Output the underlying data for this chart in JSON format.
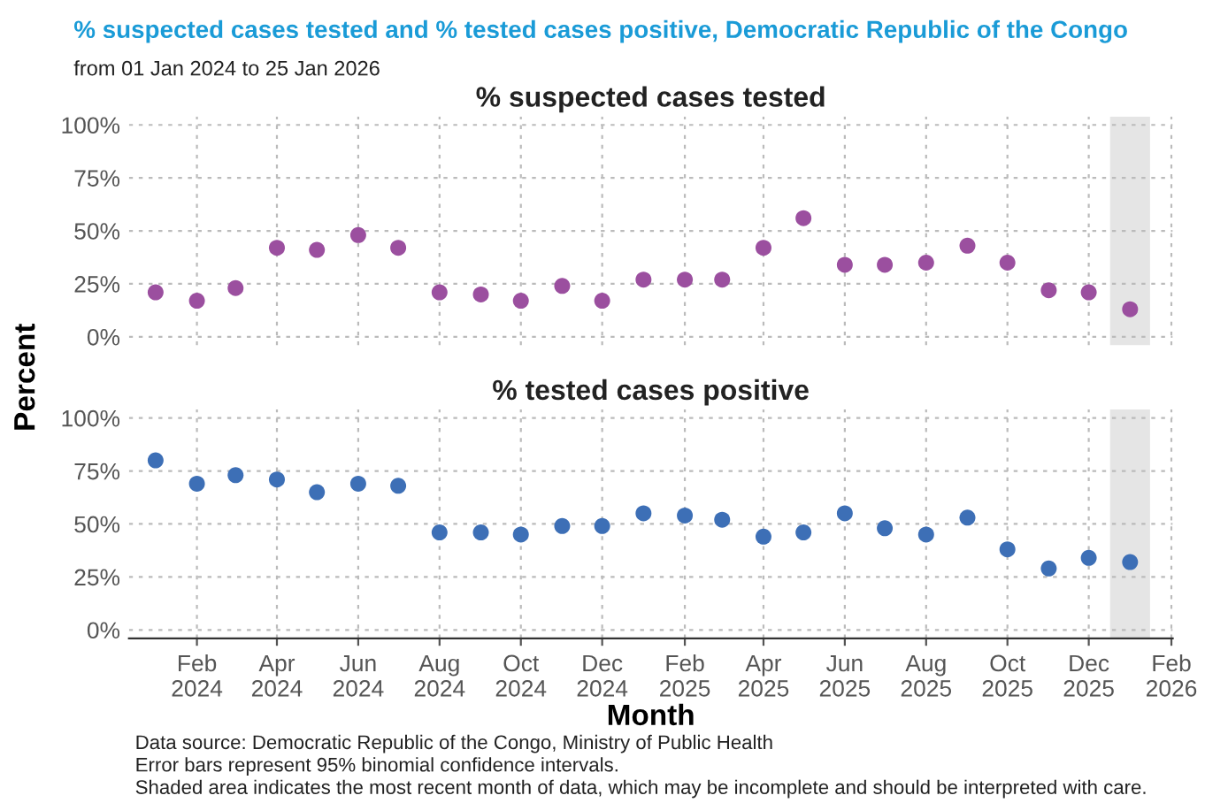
{
  "chart_data": [
    {
      "type": "scatter",
      "title": "% suspected cases tested and % tested cases positive, Democratic Republic of the Congo",
      "subtitle": "from 01 Jan 2024 to 25 Jan 2026",
      "ylabel": "Percent",
      "x": [
        "2024-01",
        "2024-02",
        "2024-03",
        "2024-04",
        "2024-05",
        "2024-06",
        "2024-07",
        "2024-08",
        "2024-09",
        "2024-10",
        "2024-11",
        "2024-12",
        "2025-01",
        "2025-02",
        "2025-03",
        "2025-04",
        "2025-05",
        "2025-06",
        "2025-07",
        "2025-08",
        "2025-09",
        "2025-10",
        "2025-11",
        "2025-12",
        "2026-01"
      ],
      "series": [
        {
          "name": "% suspected cases tested",
          "color": "#9b4f9f",
          "values": [
            21,
            17,
            23,
            42,
            41,
            48,
            42,
            21,
            20,
            17,
            24,
            17,
            27,
            27,
            27,
            42,
            56,
            34,
            34,
            35,
            43,
            35,
            22,
            21,
            13
          ]
        }
      ],
      "xlim": [
        "2023-12-12",
        "2026-02-02"
      ],
      "ylim": [
        -4,
        104
      ],
      "yticks": [
        {
          "value": 0,
          "label": "0%"
        },
        {
          "value": 25,
          "label": "25%"
        },
        {
          "value": 50,
          "label": "50%"
        },
        {
          "value": 75,
          "label": "75%"
        },
        {
          "value": 100,
          "label": "100%"
        }
      ],
      "xticks": [
        {
          "value": "2024-02-01",
          "label": null
        },
        {
          "value": "2024-04-01",
          "label": null
        },
        {
          "value": "2024-06-01",
          "label": null
        },
        {
          "value": "2024-08-01",
          "label": null
        },
        {
          "value": "2024-10-01",
          "label": null
        },
        {
          "value": "2024-12-01",
          "label": null
        },
        {
          "value": "2025-02-01",
          "label": null
        },
        {
          "value": "2025-04-01",
          "label": null
        },
        {
          "value": "2025-06-01",
          "label": null
        },
        {
          "value": "2025-08-01",
          "label": null
        },
        {
          "value": "2025-10-01",
          "label": null
        },
        {
          "value": "2025-12-01",
          "label": null
        },
        {
          "value": "2026-02-01",
          "label": null
        }
      ],
      "bands": [
        {
          "axis": "x",
          "from": "2025-12-17",
          "to": "2026-01-16",
          "color": "#e5e5e5"
        }
      ],
      "grid": true,
      "marker": "circle",
      "tick_labels": "y"
    },
    {
      "type": "scatter",
      "xlabel": "Month",
      "x": [
        "2024-01",
        "2024-02",
        "2024-03",
        "2024-04",
        "2024-05",
        "2024-06",
        "2024-07",
        "2024-08",
        "2024-09",
        "2024-10",
        "2024-11",
        "2024-12",
        "2025-01",
        "2025-02",
        "2025-03",
        "2025-04",
        "2025-05",
        "2025-06",
        "2025-07",
        "2025-08",
        "2025-09",
        "2025-10",
        "2025-11",
        "2025-12",
        "2026-01"
      ],
      "series": [
        {
          "name": "% tested cases positive",
          "color": "#3d6fb6",
          "values": [
            80,
            69,
            73,
            71,
            65,
            69,
            68,
            46,
            46,
            45,
            49,
            49,
            55,
            54,
            52,
            44,
            46,
            55,
            48,
            45,
            53,
            38,
            29,
            34,
            32
          ],
          "errors": [
            3,
            null,
            3,
            null,
            null,
            null,
            null,
            null,
            null,
            null,
            null,
            null,
            null,
            null,
            null,
            null,
            null,
            null,
            null,
            null,
            null,
            null,
            null,
            null,
            null
          ]
        }
      ],
      "xlim": [
        "2023-12-12",
        "2026-02-02"
      ],
      "ylim": [
        -4,
        104
      ],
      "yticks": [
        {
          "value": 0,
          "label": "0%"
        },
        {
          "value": 25,
          "label": "25%"
        },
        {
          "value": 50,
          "label": "50%"
        },
        {
          "value": 75,
          "label": "75%"
        },
        {
          "value": 100,
          "label": "100%"
        }
      ],
      "xticks": [
        {
          "value": "2024-02-01",
          "label": "Feb\n2024"
        },
        {
          "value": "2024-04-01",
          "label": "Apr\n2024"
        },
        {
          "value": "2024-06-01",
          "label": "Jun\n2024"
        },
        {
          "value": "2024-08-01",
          "label": "Aug\n2024"
        },
        {
          "value": "2024-10-01",
          "label": "Oct\n2024"
        },
        {
          "value": "2024-12-01",
          "label": "Dec\n2024"
        },
        {
          "value": "2025-02-01",
          "label": "Feb\n2025"
        },
        {
          "value": "2025-04-01",
          "label": "Apr\n2025"
        },
        {
          "value": "2025-06-01",
          "label": "Jun\n2025"
        },
        {
          "value": "2025-08-01",
          "label": "Aug\n2025"
        },
        {
          "value": "2025-10-01",
          "label": "Oct\n2025"
        },
        {
          "value": "2025-12-01",
          "label": "Dec\n2025"
        },
        {
          "value": "2026-02-01",
          "label": "Feb\n2026"
        }
      ],
      "bands": [
        {
          "axis": "x",
          "from": "2025-12-17",
          "to": "2026-01-16",
          "color": "#e5e5e5"
        }
      ],
      "grid": true,
      "marker": "circle",
      "annotations": [
        "Data source: Democratic Republic of the Congo, Ministry of Public Health",
        "Error bars represent 95% binomial confidence intervals.",
        "Shaded area indicates the most recent month of data, which may be incomplete and should be interpreted with care."
      ]
    }
  ]
}
